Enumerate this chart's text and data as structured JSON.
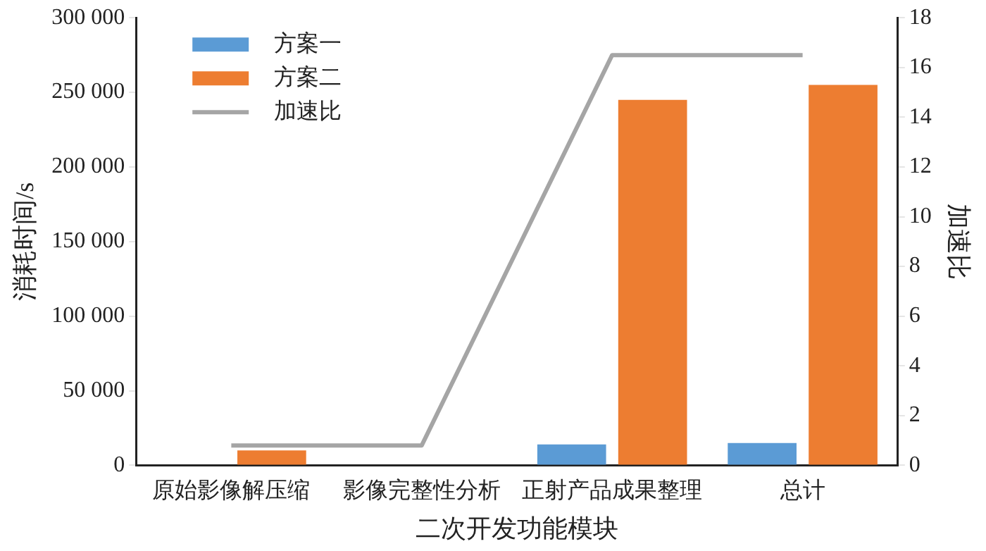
{
  "chart_data": {
    "type": "bar",
    "xlabel": "二次开发功能模块",
    "ylabel": "消耗时间/s",
    "y2label": "加速比",
    "categories": [
      "原始影像解压缩",
      "影像完整性分析",
      "正射产品成果整理",
      "总计"
    ],
    "series": [
      {
        "name": "方案一",
        "color": "#5b9bd5",
        "values": [
          0,
          0,
          14000,
          15000
        ]
      },
      {
        "name": "方案二",
        "color": "#ed7d31",
        "values": [
          10000,
          0,
          245000,
          255000
        ]
      },
      {
        "name": "加速比",
        "type": "line",
        "axis": "y2",
        "color": "#a5a5a5",
        "values": [
          0.8,
          0.8,
          16.5,
          16.5
        ]
      }
    ],
    "ylim": [
      0,
      300000
    ],
    "yticks": [
      {
        "value": 0,
        "label": "0"
      },
      {
        "value": 50000,
        "label": "50 000"
      },
      {
        "value": 100000,
        "label": "100 000"
      },
      {
        "value": 150000,
        "label": "150 000"
      },
      {
        "value": 200000,
        "label": "200 000"
      },
      {
        "value": 250000,
        "label": "250 000"
      },
      {
        "value": 300000,
        "label": "300 000"
      }
    ],
    "y2lim": [
      0,
      18
    ],
    "y2ticks": [
      0,
      2,
      4,
      6,
      8,
      10,
      12,
      14,
      16,
      18
    ],
    "legend": "top left",
    "grid": false,
    "marker": "none"
  }
}
